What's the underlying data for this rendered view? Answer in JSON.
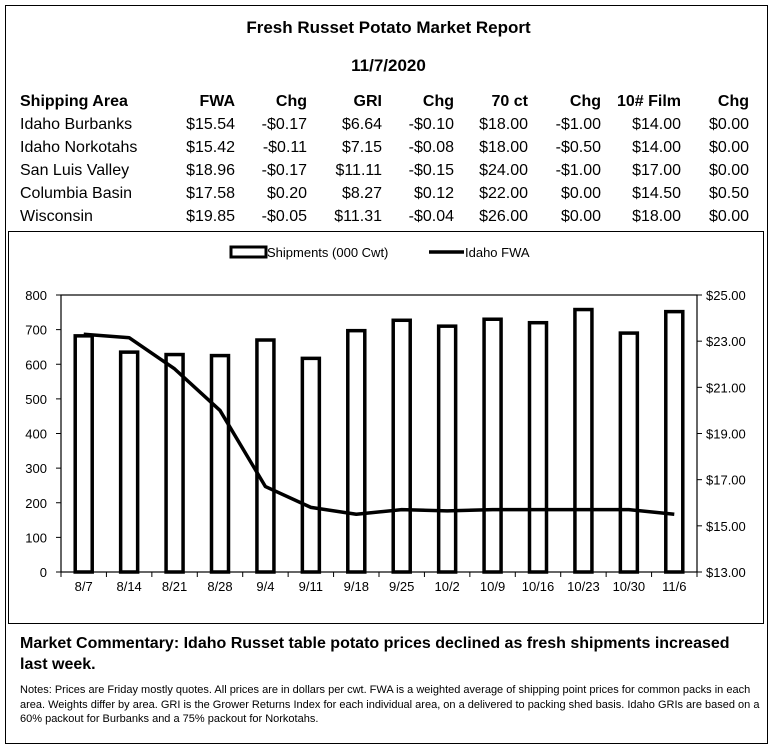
{
  "report": {
    "title": "Fresh Russet Potato Market Report",
    "date": "11/7/2020"
  },
  "table": {
    "headers": [
      "Shipping Area",
      "FWA",
      "Chg",
      "GRI",
      "Chg",
      "70 ct",
      "Chg",
      "10# Film",
      "Chg"
    ],
    "rows": [
      [
        "Idaho Burbanks",
        "$15.54",
        "-$0.17",
        "$6.64",
        "-$0.10",
        "$18.00",
        "-$1.00",
        "$14.00",
        "$0.00"
      ],
      [
        "Idaho Norkotahs",
        "$15.42",
        "-$0.11",
        "$7.15",
        "-$0.08",
        "$18.00",
        "-$0.50",
        "$14.00",
        "$0.00"
      ],
      [
        "San Luis Valley",
        "$18.96",
        "-$0.17",
        "$11.11",
        "-$0.15",
        "$24.00",
        "-$1.00",
        "$17.00",
        "$0.00"
      ],
      [
        "Columbia Basin",
        "$17.58",
        "$0.20",
        "$8.27",
        "$0.12",
        "$22.00",
        "$0.00",
        "$14.50",
        "$0.50"
      ],
      [
        "Wisconsin",
        "$19.85",
        "-$0.05",
        "$11.31",
        "-$0.04",
        "$26.00",
        "$0.00",
        "$18.00",
        "$0.00"
      ]
    ]
  },
  "chart_data": {
    "type": "bar",
    "categories": [
      "8/7",
      "8/14",
      "8/21",
      "8/28",
      "9/4",
      "9/11",
      "9/18",
      "9/25",
      "10/2",
      "10/9",
      "10/16",
      "10/23",
      "10/30",
      "11/6"
    ],
    "series": [
      {
        "name": "Shipments (000 Cwt)",
        "type": "bar",
        "axis": "left",
        "values": [
          682,
          635,
          628,
          625,
          670,
          617,
          697,
          727,
          710,
          730,
          720,
          758,
          690,
          752
        ]
      },
      {
        "name": "Idaho FWA",
        "type": "line",
        "axis": "right",
        "values": [
          23.3,
          23.15,
          21.8,
          20.0,
          16.7,
          15.8,
          15.5,
          15.7,
          15.65,
          15.7,
          15.7,
          15.7,
          15.7,
          15.5
        ]
      }
    ],
    "ylim_left": [
      0,
      800
    ],
    "yticks_left": [
      "0",
      "100",
      "200",
      "300",
      "400",
      "500",
      "600",
      "700",
      "800"
    ],
    "ylim_right": [
      13,
      25
    ],
    "yticks_right": [
      "$13.00",
      "$15.00",
      "$17.00",
      "$19.00",
      "$21.00",
      "$23.00",
      "$25.00"
    ],
    "legend_position": "top-center",
    "grid": false
  },
  "commentary": "Market Commentary: Idaho Russet table potato prices declined as fresh shipments increased last week.",
  "notes": "Notes: Prices are Friday mostly quotes. All prices are in dollars per cwt. FWA is a weighted average of shipping point prices for  common packs in each area. Weights differ by area. GRI is the Grower Returns Index for each individual area, on a delivered to packing shed basis. Idaho GRIs are based on a 60% packout for Burbanks and a 75% packout for Norkotahs."
}
